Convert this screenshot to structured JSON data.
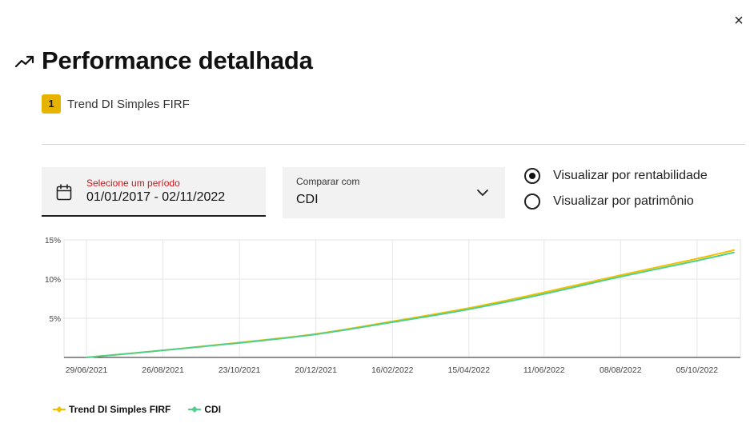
{
  "dialog": {
    "close_label": "×",
    "title": "Performance detalhada",
    "title_icon": "trending-up-icon",
    "fund_badge": "1",
    "fund_name": "Trend DI Simples FIRF"
  },
  "filters": {
    "period_label": "Selecione um período",
    "period_value": "01/01/2017 - 02/11/2022",
    "compare_label": "Comparar com",
    "compare_value": "CDI",
    "view_options": [
      {
        "label": "Visualizar por rentabilidade",
        "checked": true
      },
      {
        "label": "Visualizar por patrimônio",
        "checked": false
      }
    ]
  },
  "colors": {
    "fund": "#f2c000",
    "cdi": "#4fd08a",
    "badge": "#e6b400",
    "period_label": "#d0141a"
  },
  "chart_data": {
    "type": "line",
    "x_ticks": [
      "29/06/2021",
      "26/08/2021",
      "23/10/2021",
      "20/12/2021",
      "16/02/2022",
      "15/04/2022",
      "11/06/2022",
      "08/08/2022",
      "05/10/2022"
    ],
    "y_ticks": [
      "15%",
      "10%",
      "5%"
    ],
    "ylim": [
      0,
      15
    ],
    "xlim": [
      "29/06/2021",
      "02/11/2022"
    ],
    "grid": true,
    "legend": "bottom-left",
    "series": [
      {
        "name": "Trend DI Simples FIRF",
        "color": "#f2c000",
        "points": [
          [
            "29/06/2021",
            0
          ],
          [
            "26/08/2021",
            0.9
          ],
          [
            "23/10/2021",
            1.9
          ],
          [
            "20/12/2021",
            3.0
          ],
          [
            "16/02/2022",
            4.6
          ],
          [
            "15/04/2022",
            6.3
          ],
          [
            "11/06/2022",
            8.3
          ],
          [
            "08/08/2022",
            10.5
          ],
          [
            "05/10/2022",
            12.6
          ],
          [
            "02/11/2022",
            13.7
          ]
        ]
      },
      {
        "name": "CDI",
        "color": "#4fd08a",
        "points": [
          [
            "29/06/2021",
            0
          ],
          [
            "26/08/2021",
            0.9
          ],
          [
            "23/10/2021",
            1.85
          ],
          [
            "20/12/2021",
            2.95
          ],
          [
            "16/02/2022",
            4.5
          ],
          [
            "15/04/2022",
            6.15
          ],
          [
            "11/06/2022",
            8.1
          ],
          [
            "08/08/2022",
            10.3
          ],
          [
            "05/10/2022",
            12.35
          ],
          [
            "02/11/2022",
            13.4
          ]
        ]
      }
    ]
  }
}
